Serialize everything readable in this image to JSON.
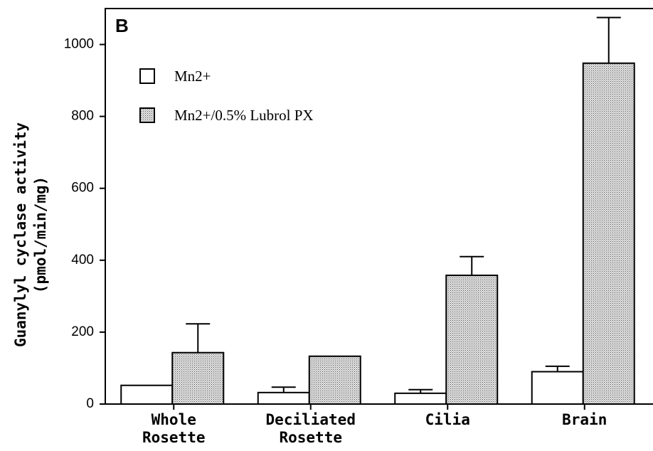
{
  "chart_data": {
    "type": "bar",
    "panel_label": "B",
    "y_label": [
      "Guanylyl cyclase activity",
      "(pmol/min/mg)"
    ],
    "categories": [
      "Whole Rosette",
      "Deciliated Rosette",
      "Cilia",
      "Brain"
    ],
    "series": [
      {
        "name": "Mn2+",
        "color": "#ffffff",
        "values": [
          52,
          32,
          30,
          90
        ],
        "errors": [
          null,
          15,
          10,
          15
        ]
      },
      {
        "name": "Mn2+/0.5% Lubrol  PX",
        "color": "#c4c4c4",
        "values": [
          143,
          133,
          358,
          948
        ],
        "errors": [
          80,
          null,
          52,
          127
        ]
      }
    ],
    "ylim": [
      0,
      1100
    ],
    "yticks": [
      0,
      200,
      400,
      600,
      800,
      1000
    ]
  }
}
